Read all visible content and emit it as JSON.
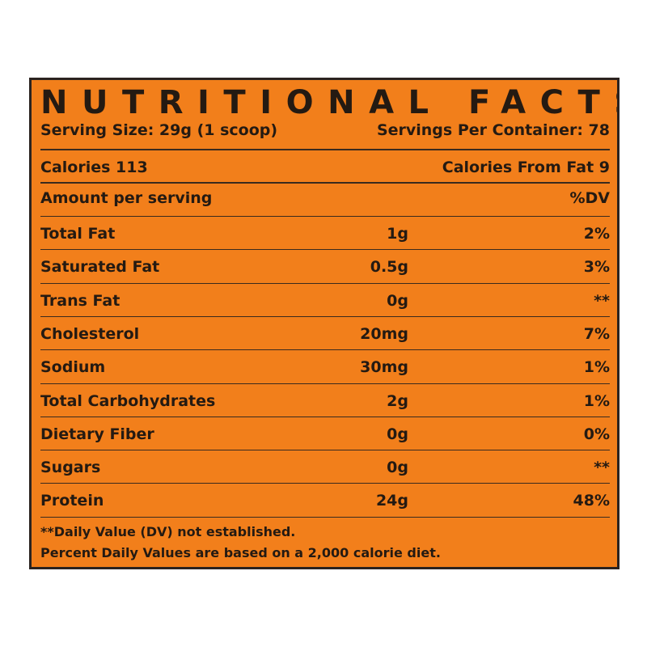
{
  "header": {
    "title": "NUTRITIONAL FACTS",
    "serving_size": "Serving Size: 29g (1 scoop)",
    "servings_per_container": "Servings Per Container: 78"
  },
  "calories": {
    "calories": "Calories 113",
    "calories_from_fat": "Calories From Fat 9"
  },
  "table": {
    "header": [
      "Amount per serving",
      "%DV"
    ],
    "rows": [
      [
        "Total Fat",
        "1g",
        "2%"
      ],
      [
        "Saturated Fat",
        "0.5g",
        "3%"
      ],
      [
        "Trans Fat",
        "0g",
        "**"
      ],
      [
        "Cholesterol",
        "20mg",
        "7%"
      ],
      [
        "Sodium",
        "30mg",
        "1%"
      ],
      [
        "Total Carbohydrates",
        "2g",
        "1%"
      ],
      [
        "Dietary Fiber",
        "0g",
        "0%"
      ],
      [
        "Sugars",
        "0g",
        "**"
      ],
      [
        "Protein",
        "24g",
        "48%"
      ]
    ]
  },
  "footnotes": [
    "**Daily Value (DV) not established.",
    "Percent Daily Values are based on a 2,000 calorie diet."
  ]
}
